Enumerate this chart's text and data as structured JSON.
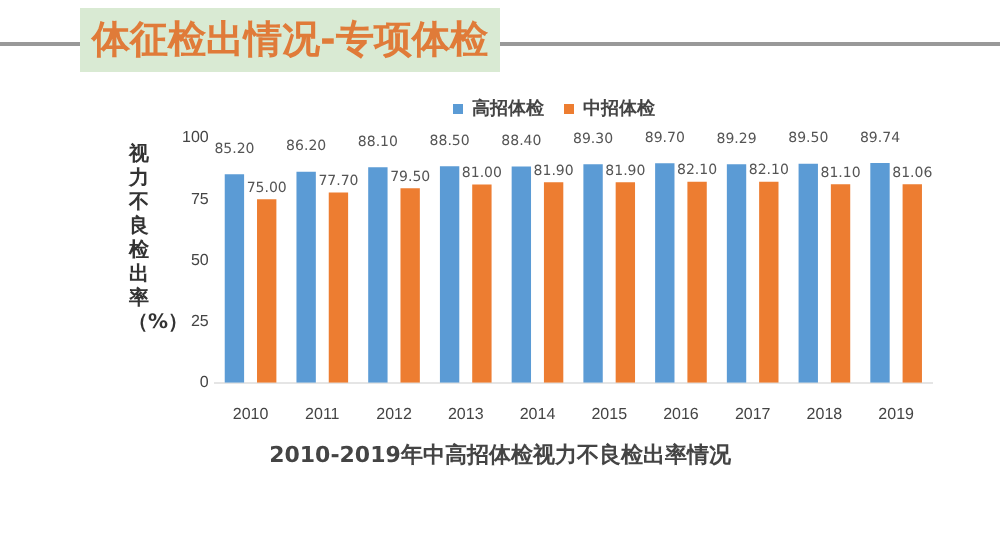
{
  "chart_data": {
    "type": "bar",
    "title": "体征检出情况-专项体检",
    "subtitle": "2010-2019年中高招体检视力不良检出率情况",
    "ylabel": "视力不良检出率（%）",
    "categories": [
      "2010",
      "2011",
      "2012",
      "2013",
      "2014",
      "2015",
      "2016",
      "2017",
      "2018",
      "2019"
    ],
    "series": [
      {
        "name": "高招体检",
        "color": "#5b9bd5",
        "values": [
          85.2,
          86.2,
          88.1,
          88.5,
          88.4,
          89.3,
          89.7,
          89.29,
          89.5,
          89.74
        ],
        "value_labels": [
          "85.20",
          "86.20",
          "88.10",
          "88.50",
          "88.40",
          "89.30",
          "89.70",
          "89.29",
          "89.50",
          "89.74"
        ]
      },
      {
        "name": "中招体检",
        "color": "#ed7d31",
        "values": [
          75,
          77.7,
          79.5,
          81,
          81.9,
          81.9,
          82.1,
          82.1,
          81.1,
          81.06
        ],
        "value_labels": [
          "75.00",
          "77.70",
          "79.50",
          "81.00",
          "81.90",
          "81.90",
          "82.10",
          "82.10",
          "81.10",
          "81.06"
        ]
      }
    ],
    "ylim": [
      0,
      100
    ],
    "yticks": [
      0,
      25,
      50,
      75,
      100
    ],
    "grid": false,
    "legend": "top"
  }
}
